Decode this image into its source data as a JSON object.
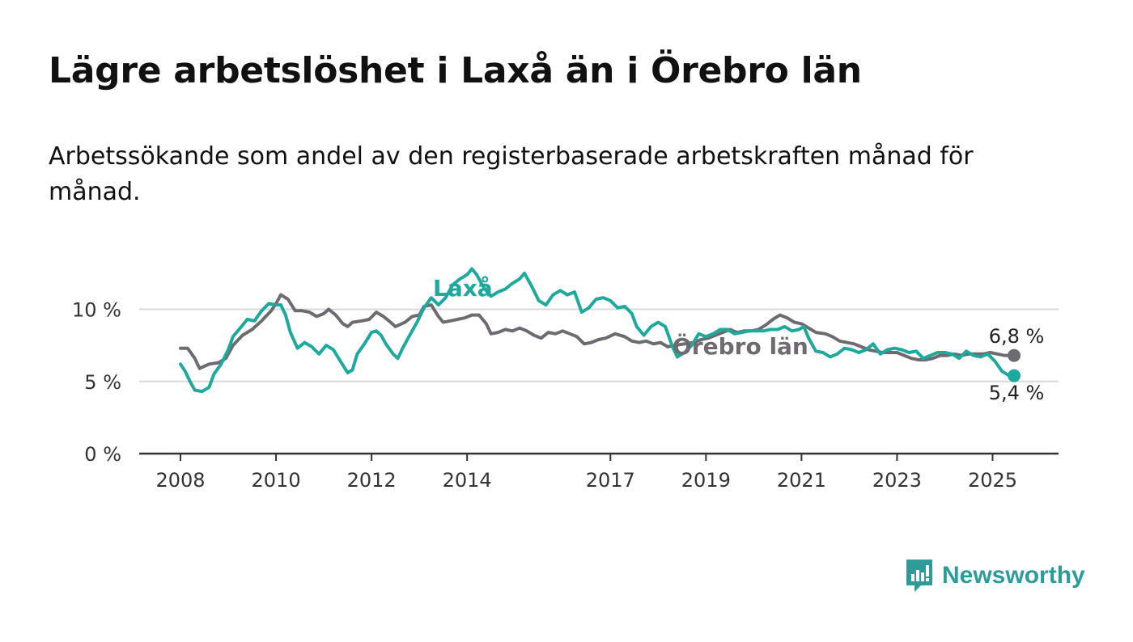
{
  "title": "Lägre arbetslöshet i Laxå än i Örebro län",
  "subtitle": "Arbetssökande som andel av den registerbaserade arbetskraften månad för månad.",
  "brand": {
    "name": "Newsworthy",
    "icon": "newsworthy-logo-icon",
    "color": "#2e9b98"
  },
  "colors": {
    "laxa": "#1fa89c",
    "orebro": "#6e6b70",
    "grid": "#d9d9d9",
    "axis": "#333333"
  },
  "chart_data": {
    "type": "line",
    "x_range": [
      2008.0,
      2025.5
    ],
    "ylim": [
      0,
      12.5
    ],
    "grid": true,
    "y_ticks": [
      {
        "value": 0,
        "label": "0 %"
      },
      {
        "value": 5,
        "label": "5 %"
      },
      {
        "value": 10,
        "label": "10 %"
      }
    ],
    "x_ticks": [
      {
        "value": 2008,
        "label": "2008"
      },
      {
        "value": 2010,
        "label": "2010"
      },
      {
        "value": 2012,
        "label": "2012"
      },
      {
        "value": 2014,
        "label": "2014"
      },
      {
        "value": 2017,
        "label": "2017"
      },
      {
        "value": 2019,
        "label": "2019"
      },
      {
        "value": 2021,
        "label": "2021"
      },
      {
        "value": 2023,
        "label": "2023"
      },
      {
        "value": 2025,
        "label": "2025"
      }
    ],
    "series": [
      {
        "name": "Örebro län",
        "color": "#6e6b70",
        "end_label": "6,8 %",
        "points": [
          [
            2008.0,
            7.3
          ],
          [
            2008.15,
            7.3
          ],
          [
            2008.3,
            6.6
          ],
          [
            2008.4,
            5.9
          ],
          [
            2008.6,
            6.2
          ],
          [
            2008.8,
            6.3
          ],
          [
            2008.95,
            6.6
          ],
          [
            2009.1,
            7.5
          ],
          [
            2009.3,
            8.2
          ],
          [
            2009.5,
            8.6
          ],
          [
            2009.7,
            9.2
          ],
          [
            2009.9,
            9.9
          ],
          [
            2010.0,
            10.4
          ],
          [
            2010.1,
            11.0
          ],
          [
            2010.25,
            10.7
          ],
          [
            2010.4,
            9.9
          ],
          [
            2010.55,
            9.9
          ],
          [
            2010.7,
            9.8
          ],
          [
            2010.85,
            9.5
          ],
          [
            2011.0,
            9.7
          ],
          [
            2011.1,
            10.0
          ],
          [
            2011.25,
            9.6
          ],
          [
            2011.4,
            9.0
          ],
          [
            2011.5,
            8.8
          ],
          [
            2011.6,
            9.1
          ],
          [
            2011.8,
            9.2
          ],
          [
            2011.95,
            9.3
          ],
          [
            2012.1,
            9.8
          ],
          [
            2012.25,
            9.5
          ],
          [
            2012.4,
            9.1
          ],
          [
            2012.5,
            8.8
          ],
          [
            2012.7,
            9.1
          ],
          [
            2012.85,
            9.5
          ],
          [
            2013.0,
            9.6
          ],
          [
            2013.1,
            10.2
          ],
          [
            2013.25,
            10.3
          ],
          [
            2013.4,
            9.5
          ],
          [
            2013.5,
            9.1
          ],
          [
            2013.65,
            9.2
          ],
          [
            2013.8,
            9.3
          ],
          [
            2013.95,
            9.4
          ],
          [
            2014.1,
            9.6
          ],
          [
            2014.25,
            9.6
          ],
          [
            2014.4,
            9.0
          ],
          [
            2014.5,
            8.3
          ],
          [
            2014.65,
            8.4
          ],
          [
            2014.8,
            8.6
          ],
          [
            2014.95,
            8.5
          ],
          [
            2015.1,
            8.7
          ],
          [
            2015.25,
            8.5
          ],
          [
            2015.4,
            8.2
          ],
          [
            2015.55,
            8.0
          ],
          [
            2015.7,
            8.4
          ],
          [
            2015.85,
            8.3
          ],
          [
            2016.0,
            8.5
          ],
          [
            2016.15,
            8.3
          ],
          [
            2016.3,
            8.1
          ],
          [
            2016.45,
            7.6
          ],
          [
            2016.6,
            7.7
          ],
          [
            2016.75,
            7.9
          ],
          [
            2016.9,
            8.0
          ],
          [
            2017.1,
            8.3
          ],
          [
            2017.3,
            8.1
          ],
          [
            2017.45,
            7.8
          ],
          [
            2017.6,
            7.7
          ],
          [
            2017.75,
            7.8
          ],
          [
            2017.9,
            7.6
          ],
          [
            2018.05,
            7.7
          ],
          [
            2018.2,
            7.4
          ],
          [
            2018.35,
            7.5
          ],
          [
            2018.55,
            7.6
          ],
          [
            2018.75,
            7.7
          ],
          [
            2018.9,
            7.9
          ],
          [
            2019.05,
            8.0
          ],
          [
            2019.2,
            8.2
          ],
          [
            2019.35,
            8.4
          ],
          [
            2019.5,
            8.6
          ],
          [
            2019.65,
            8.4
          ],
          [
            2019.8,
            8.5
          ],
          [
            2019.95,
            8.5
          ],
          [
            2020.1,
            8.6
          ],
          [
            2020.25,
            8.9
          ],
          [
            2020.4,
            9.3
          ],
          [
            2020.55,
            9.6
          ],
          [
            2020.7,
            9.4
          ],
          [
            2020.85,
            9.1
          ],
          [
            2021.0,
            9.0
          ],
          [
            2021.15,
            8.7
          ],
          [
            2021.3,
            8.4
          ],
          [
            2021.5,
            8.3
          ],
          [
            2021.65,
            8.1
          ],
          [
            2021.8,
            7.8
          ],
          [
            2021.95,
            7.7
          ],
          [
            2022.1,
            7.6
          ],
          [
            2022.25,
            7.4
          ],
          [
            2022.4,
            7.2
          ],
          [
            2022.55,
            7.1
          ],
          [
            2022.7,
            7.0
          ],
          [
            2022.85,
            7.0
          ],
          [
            2023.0,
            7.0
          ],
          [
            2023.15,
            6.8
          ],
          [
            2023.3,
            6.6
          ],
          [
            2023.45,
            6.5
          ],
          [
            2023.6,
            6.5
          ],
          [
            2023.75,
            6.6
          ],
          [
            2023.9,
            6.8
          ],
          [
            2024.05,
            6.8
          ],
          [
            2024.2,
            6.9
          ],
          [
            2024.35,
            6.8
          ],
          [
            2024.5,
            6.9
          ],
          [
            2024.65,
            6.9
          ],
          [
            2024.8,
            6.9
          ],
          [
            2024.95,
            7.0
          ],
          [
            2025.1,
            6.9
          ],
          [
            2025.25,
            6.8
          ],
          [
            2025.45,
            6.8
          ]
        ]
      },
      {
        "name": "Laxå",
        "color": "#1fa89c",
        "end_label": "5,4 %",
        "points": [
          [
            2008.0,
            6.2
          ],
          [
            2008.1,
            5.7
          ],
          [
            2008.2,
            5.0
          ],
          [
            2008.3,
            4.4
          ],
          [
            2008.45,
            4.3
          ],
          [
            2008.6,
            4.6
          ],
          [
            2008.7,
            5.5
          ],
          [
            2008.85,
            6.2
          ],
          [
            2009.0,
            7.2
          ],
          [
            2009.1,
            8.1
          ],
          [
            2009.25,
            8.7
          ],
          [
            2009.4,
            9.3
          ],
          [
            2009.55,
            9.2
          ],
          [
            2009.7,
            9.9
          ],
          [
            2009.85,
            10.4
          ],
          [
            2010.0,
            10.3
          ],
          [
            2010.1,
            10.3
          ],
          [
            2010.2,
            9.6
          ],
          [
            2010.3,
            8.4
          ],
          [
            2010.45,
            7.3
          ],
          [
            2010.6,
            7.7
          ],
          [
            2010.75,
            7.4
          ],
          [
            2010.9,
            6.9
          ],
          [
            2011.05,
            7.5
          ],
          [
            2011.2,
            7.2
          ],
          [
            2011.35,
            6.4
          ],
          [
            2011.5,
            5.6
          ],
          [
            2011.6,
            5.8
          ],
          [
            2011.7,
            6.9
          ],
          [
            2011.85,
            7.6
          ],
          [
            2012.0,
            8.4
          ],
          [
            2012.1,
            8.5
          ],
          [
            2012.2,
            8.2
          ],
          [
            2012.3,
            7.6
          ],
          [
            2012.45,
            6.9
          ],
          [
            2012.55,
            6.6
          ],
          [
            2012.65,
            7.3
          ],
          [
            2012.8,
            8.2
          ],
          [
            2012.95,
            9.1
          ],
          [
            2013.1,
            10.1
          ],
          [
            2013.25,
            10.8
          ],
          [
            2013.4,
            10.3
          ],
          [
            2013.55,
            10.8
          ],
          [
            2013.7,
            11.7
          ],
          [
            2013.85,
            12.1
          ],
          [
            2014.0,
            12.4
          ],
          [
            2014.1,
            12.8
          ],
          [
            2014.2,
            12.4
          ],
          [
            2014.35,
            11.5
          ],
          [
            2014.5,
            10.9
          ],
          [
            2014.65,
            11.2
          ],
          [
            2014.8,
            11.4
          ],
          [
            2014.95,
            11.8
          ],
          [
            2015.1,
            12.1
          ],
          [
            2015.2,
            12.5
          ],
          [
            2015.35,
            11.6
          ],
          [
            2015.5,
            10.6
          ],
          [
            2015.65,
            10.3
          ],
          [
            2015.8,
            11.0
          ],
          [
            2015.95,
            11.3
          ],
          [
            2016.1,
            11.0
          ],
          [
            2016.25,
            11.2
          ],
          [
            2016.4,
            9.8
          ],
          [
            2016.55,
            10.1
          ],
          [
            2016.7,
            10.7
          ],
          [
            2016.85,
            10.8
          ],
          [
            2017.0,
            10.6
          ],
          [
            2017.15,
            10.1
          ],
          [
            2017.3,
            10.2
          ],
          [
            2017.45,
            9.7
          ],
          [
            2017.55,
            8.8
          ],
          [
            2017.7,
            8.2
          ],
          [
            2017.85,
            8.8
          ],
          [
            2018.0,
            9.1
          ],
          [
            2018.15,
            8.8
          ],
          [
            2018.3,
            7.4
          ],
          [
            2018.4,
            6.7
          ],
          [
            2018.55,
            7.0
          ],
          [
            2018.7,
            7.5
          ],
          [
            2018.85,
            8.3
          ],
          [
            2019.0,
            8.1
          ],
          [
            2019.15,
            8.3
          ],
          [
            2019.3,
            8.6
          ],
          [
            2019.45,
            8.6
          ],
          [
            2019.6,
            8.3
          ],
          [
            2019.75,
            8.4
          ],
          [
            2019.9,
            8.5
          ],
          [
            2020.05,
            8.5
          ],
          [
            2020.2,
            8.5
          ],
          [
            2020.35,
            8.6
          ],
          [
            2020.5,
            8.6
          ],
          [
            2020.65,
            8.8
          ],
          [
            2020.8,
            8.5
          ],
          [
            2020.95,
            8.6
          ],
          [
            2021.05,
            8.8
          ],
          [
            2021.15,
            8.0
          ],
          [
            2021.3,
            7.1
          ],
          [
            2021.45,
            7.0
          ],
          [
            2021.6,
            6.7
          ],
          [
            2021.75,
            6.9
          ],
          [
            2021.9,
            7.3
          ],
          [
            2022.05,
            7.2
          ],
          [
            2022.2,
            7.0
          ],
          [
            2022.35,
            7.2
          ],
          [
            2022.5,
            7.6
          ],
          [
            2022.65,
            6.9
          ],
          [
            2022.8,
            7.2
          ],
          [
            2022.95,
            7.3
          ],
          [
            2023.1,
            7.2
          ],
          [
            2023.25,
            7.0
          ],
          [
            2023.4,
            7.1
          ],
          [
            2023.55,
            6.6
          ],
          [
            2023.7,
            6.8
          ],
          [
            2023.85,
            7.0
          ],
          [
            2024.0,
            7.0
          ],
          [
            2024.15,
            6.9
          ],
          [
            2024.3,
            6.6
          ],
          [
            2024.45,
            7.1
          ],
          [
            2024.6,
            6.8
          ],
          [
            2024.75,
            6.7
          ],
          [
            2024.9,
            6.9
          ],
          [
            2025.05,
            6.4
          ],
          [
            2025.2,
            5.7
          ],
          [
            2025.35,
            5.4
          ],
          [
            2025.45,
            5.4
          ]
        ]
      }
    ]
  }
}
